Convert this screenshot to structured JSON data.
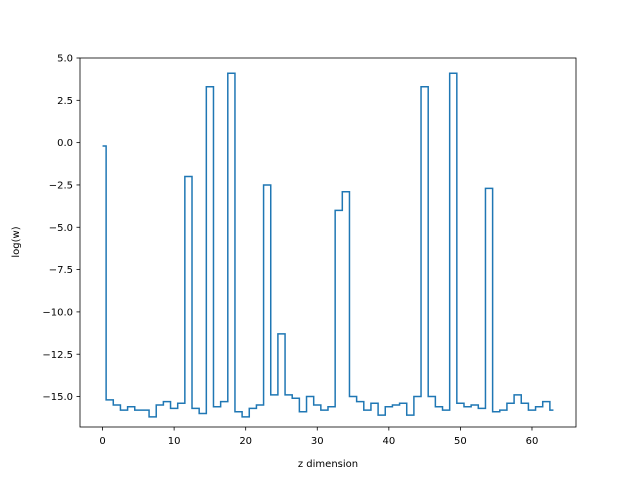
{
  "chart_data": {
    "type": "line",
    "drawstyle": "steps-mid",
    "title": "",
    "xlabel": "z dimension",
    "ylabel": "log(w)",
    "xlim": [
      -3.15,
      66.15
    ],
    "ylim": [
      -16.8,
      5.0
    ],
    "xticks": [
      0,
      10,
      20,
      30,
      40,
      50,
      60
    ],
    "xtick_labels": [
      "0",
      "10",
      "20",
      "30",
      "40",
      "50",
      "60"
    ],
    "yticks": [
      5.0,
      2.5,
      0.0,
      -2.5,
      -5.0,
      -7.5,
      -10.0,
      -12.5,
      -15.0
    ],
    "ytick_labels": [
      "5.0",
      "2.5",
      "0.0",
      "−2.5",
      "−5.0",
      "−7.5",
      "−10.0",
      "−12.5",
      "−15.0"
    ],
    "grid": false,
    "color": "#1f77b4",
    "series": [
      {
        "x": [
          0,
          1,
          2,
          3,
          4,
          5,
          6,
          7,
          8,
          9,
          10,
          11,
          12,
          13,
          14,
          15,
          16,
          17,
          18,
          19,
          20,
          21,
          22,
          23,
          24,
          25,
          26,
          27,
          28,
          29,
          30,
          31,
          32,
          33,
          34,
          35,
          36,
          37,
          38,
          39,
          40,
          41,
          42,
          43,
          44,
          45,
          46,
          47,
          48,
          49,
          50,
          51,
          52,
          53,
          54,
          55,
          56,
          57,
          58,
          59,
          60,
          61,
          62,
          63
        ],
        "y": [
          -0.2,
          -15.2,
          -15.5,
          -15.8,
          -15.6,
          -15.8,
          -15.8,
          -16.2,
          -15.5,
          -15.3,
          -15.7,
          -15.4,
          -2.0,
          -15.7,
          -16.0,
          3.3,
          -15.6,
          -15.3,
          4.1,
          -15.9,
          -16.2,
          -15.7,
          -15.5,
          -2.5,
          -14.9,
          -11.3,
          -14.9,
          -15.1,
          -15.9,
          -15.0,
          -15.5,
          -15.8,
          -15.6,
          -4.0,
          -2.9,
          -15.0,
          -15.3,
          -15.8,
          -15.4,
          -16.1,
          -15.6,
          -15.5,
          -15.4,
          -16.1,
          -15.0,
          3.3,
          -15.0,
          -15.6,
          -15.8,
          4.1,
          -15.4,
          -15.6,
          -15.5,
          -15.7,
          -2.7,
          -15.9,
          -15.8,
          -15.4,
          -14.9,
          -15.4,
          -15.8,
          -15.6,
          -15.3,
          -15.8
        ]
      }
    ]
  }
}
